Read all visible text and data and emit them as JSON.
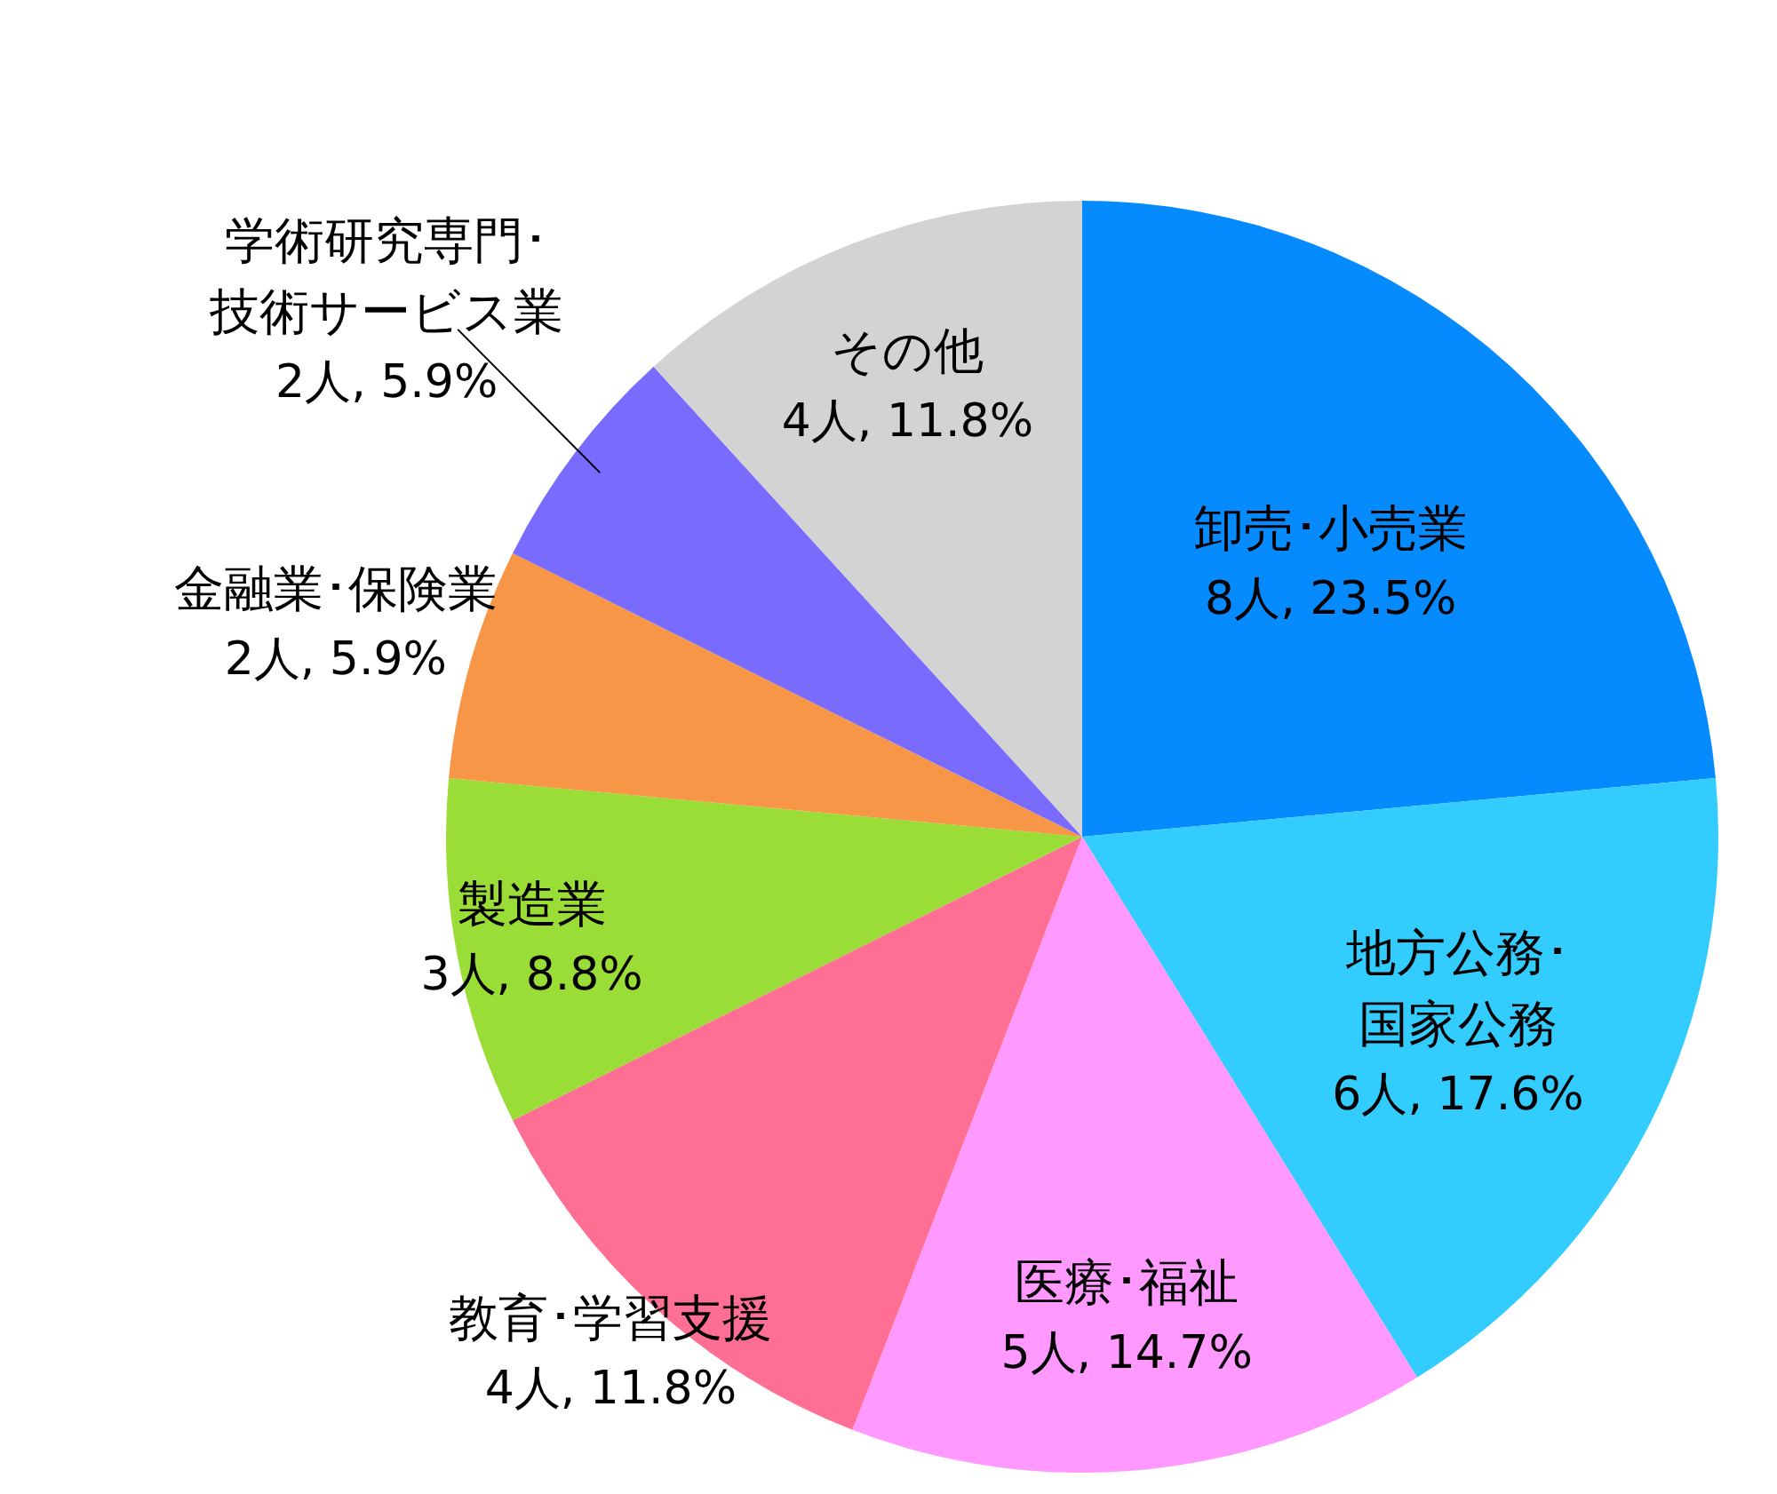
{
  "chart_data": {
    "type": "pie",
    "categories": [
      "卸売･小売業",
      "地方公務･国家公務",
      "医療･福祉",
      "教育･学習支援",
      "製造業",
      "金融業･保険業",
      "学術研究専門･技術サービス業",
      "その他"
    ],
    "values": [
      8,
      6,
      5,
      4,
      3,
      2,
      2,
      4
    ],
    "value_labels": [
      "8人, 23.5%",
      "6人, 17.6%",
      "5人, 14.7%",
      "4人, 11.8%",
      "3人, 8.8%",
      "2人, 5.9%",
      "2人, 5.9%",
      "4人, 11.8%"
    ],
    "colors": [
      "#068bff",
      "#33ccff",
      "#ff99ff",
      "#ff6f94",
      "#99dd36",
      "#f79646",
      "#7a6bff",
      "#d3d3d3"
    ]
  }
}
